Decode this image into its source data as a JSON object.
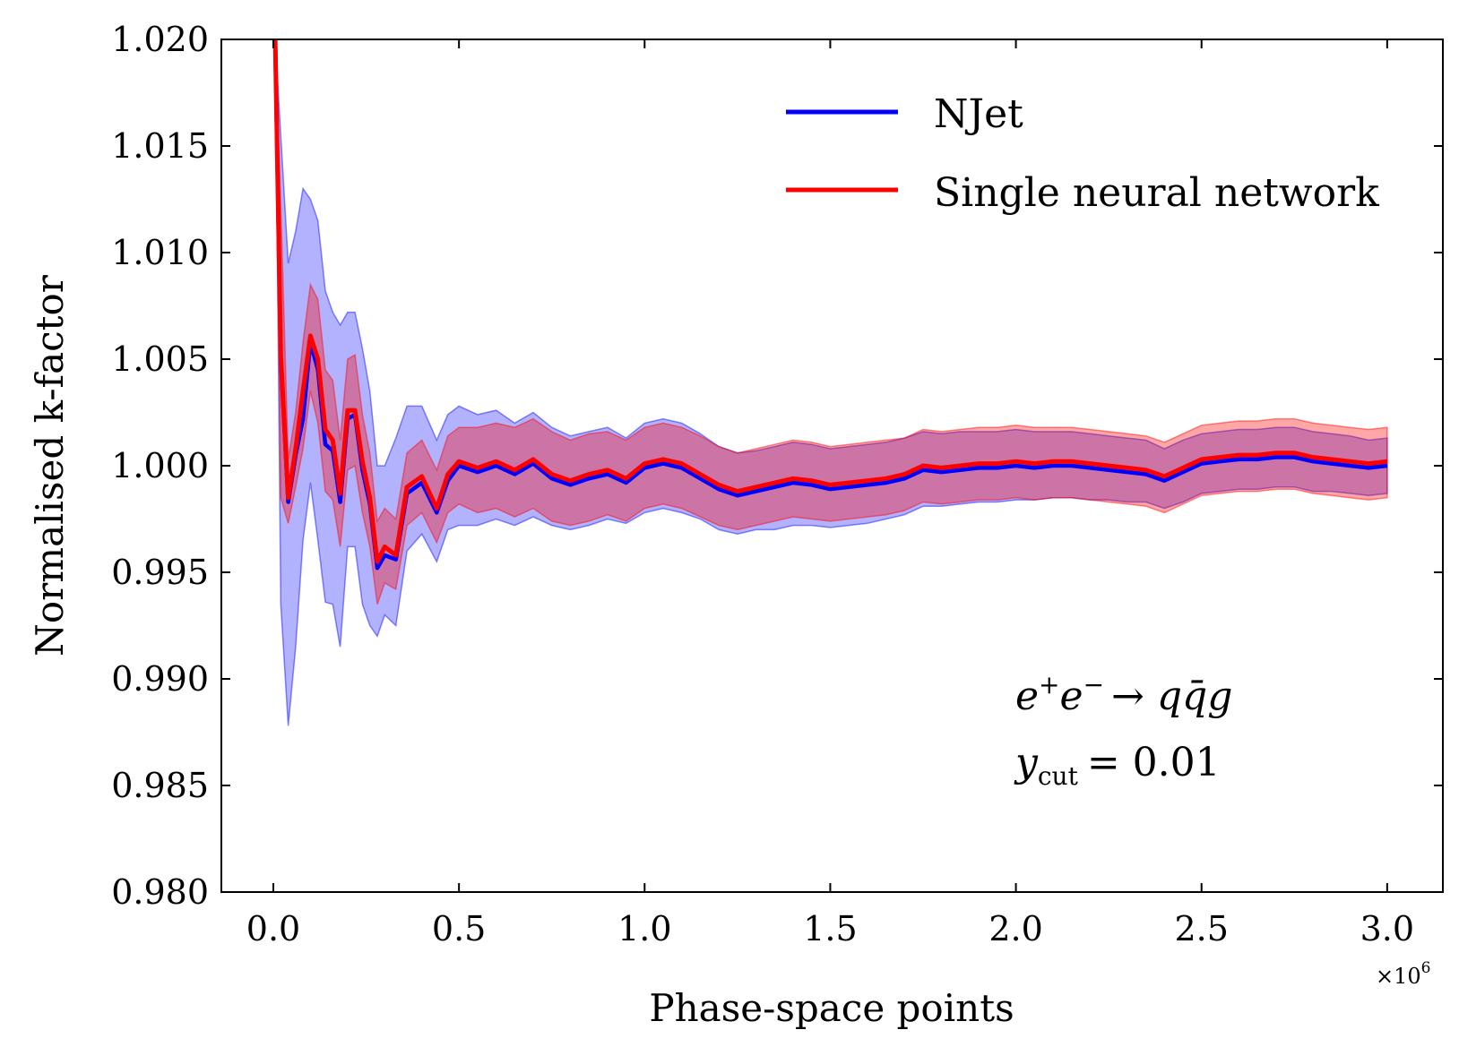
{
  "chart_data": {
    "type": "line",
    "xlabel": "Phase-space points",
    "ylabel": "Normalised k-factor",
    "x_scale_label": "×10",
    "x_scale_exponent": "6",
    "xlim": [
      -0.14,
      3.15
    ],
    "ylim": [
      0.98,
      1.02
    ],
    "xticks": [
      0.0,
      0.5,
      1.0,
      1.5,
      2.0,
      2.5,
      3.0
    ],
    "xtick_labels": [
      "0.0",
      "0.5",
      "1.0",
      "1.5",
      "2.0",
      "2.5",
      "3.0"
    ],
    "yticks": [
      0.98,
      0.985,
      0.99,
      0.995,
      1.0,
      1.005,
      1.01,
      1.015,
      1.02
    ],
    "ytick_labels": [
      "0.980",
      "0.985",
      "0.990",
      "0.995",
      "1.000",
      "1.005",
      "1.010",
      "1.015",
      "1.020"
    ],
    "legend_position": "top-right",
    "annotation": {
      "process_lhs": "e",
      "process_rhs": "→ qq̄g",
      "ycut_symbol": "y",
      "ycut_sub": "cut",
      "ycut_value": "= 0.01"
    },
    "x": [
      0.005,
      0.02,
      0.04,
      0.06,
      0.08,
      0.1,
      0.12,
      0.14,
      0.16,
      0.18,
      0.2,
      0.22,
      0.24,
      0.26,
      0.28,
      0.3,
      0.33,
      0.36,
      0.4,
      0.44,
      0.47,
      0.5,
      0.55,
      0.6,
      0.65,
      0.7,
      0.75,
      0.8,
      0.85,
      0.9,
      0.95,
      1.0,
      1.05,
      1.1,
      1.15,
      1.2,
      1.25,
      1.3,
      1.35,
      1.4,
      1.45,
      1.5,
      1.55,
      1.6,
      1.65,
      1.7,
      1.75,
      1.8,
      1.85,
      1.9,
      1.95,
      2.0,
      2.05,
      2.1,
      2.15,
      2.2,
      2.25,
      2.3,
      2.35,
      2.4,
      2.45,
      2.5,
      2.55,
      2.6,
      2.65,
      2.7,
      2.75,
      2.8,
      2.85,
      2.9,
      2.95,
      3.0
    ],
    "series": [
      {
        "name": "NJet",
        "color": "#0000ff",
        "values": [
          1.02,
          1.005,
          0.9983,
          1.0005,
          1.0022,
          1.0058,
          1.0045,
          1.001,
          1.0007,
          0.9983,
          1.0022,
          1.0024,
          0.9998,
          0.9982,
          0.9952,
          0.9958,
          0.9956,
          0.9987,
          0.9992,
          0.9978,
          0.9993,
          1.0,
          0.9997,
          1.0,
          0.9996,
          1.0001,
          0.9994,
          0.9991,
          0.9994,
          0.9996,
          0.9992,
          0.9999,
          1.0001,
          0.9999,
          0.9994,
          0.9989,
          0.9986,
          0.9988,
          0.999,
          0.9992,
          0.9991,
          0.9989,
          0.999,
          0.9991,
          0.9992,
          0.9994,
          0.9998,
          0.9997,
          0.9998,
          0.9999,
          0.9999,
          1.0,
          0.9999,
          1.0,
          1.0,
          0.9999,
          0.9998,
          0.9997,
          0.9996,
          0.9993,
          0.9997,
          1.0001,
          1.0002,
          1.0003,
          1.0003,
          1.0004,
          1.0004,
          1.0002,
          1.0001,
          1.0,
          0.9999,
          1.0
        ]
      },
      {
        "name": "Single neural network",
        "color": "#ff0000",
        "values": [
          1.02,
          1.0052,
          0.9985,
          1.0008,
          1.0035,
          1.0061,
          1.005,
          1.0017,
          1.0012,
          0.9987,
          1.0026,
          1.0026,
          1.0002,
          0.9985,
          0.9955,
          0.9962,
          0.9958,
          0.999,
          0.9995,
          0.998,
          0.9996,
          1.0002,
          0.9999,
          1.0002,
          0.9998,
          1.0003,
          0.9996,
          0.9993,
          0.9996,
          0.9998,
          0.9994,
          1.0001,
          1.0003,
          1.0001,
          0.9996,
          0.9991,
          0.9988,
          0.999,
          0.9992,
          0.9994,
          0.9993,
          0.9991,
          0.9992,
          0.9993,
          0.9994,
          0.9996,
          1.0,
          0.9999,
          1.0,
          1.0001,
          1.0001,
          1.0002,
          1.0001,
          1.0002,
          1.0002,
          1.0001,
          1.0,
          0.9999,
          0.9998,
          0.9995,
          0.9999,
          1.0003,
          1.0004,
          1.0005,
          1.0005,
          1.0006,
          1.0006,
          1.0004,
          1.0003,
          1.0002,
          1.0001,
          1.0002
        ]
      }
    ],
    "bands": [
      {
        "name": "NJet uncertainty",
        "color": "#0000ff",
        "opacity": 0.3,
        "lower": [
          1.02,
          0.9935,
          0.9878,
          0.9915,
          0.9965,
          0.9992,
          0.9965,
          0.9936,
          0.9935,
          0.9915,
          0.9962,
          0.9962,
          0.9935,
          0.9925,
          0.992,
          0.993,
          0.9925,
          0.996,
          0.9968,
          0.9955,
          0.997,
          0.9972,
          0.9972,
          0.9975,
          0.9972,
          0.9976,
          0.9972,
          0.997,
          0.9972,
          0.9975,
          0.9973,
          0.9978,
          0.998,
          0.9978,
          0.9975,
          0.997,
          0.9968,
          0.997,
          0.997,
          0.9972,
          0.9972,
          0.9971,
          0.9972,
          0.9973,
          0.9975,
          0.9977,
          0.9981,
          0.9981,
          0.9982,
          0.9983,
          0.9983,
          0.9984,
          0.9984,
          0.9985,
          0.9985,
          0.9984,
          0.9984,
          0.9983,
          0.9983,
          0.998,
          0.9983,
          0.9987,
          0.9988,
          0.9989,
          0.9989,
          0.999,
          0.999,
          0.9988,
          0.9988,
          0.9987,
          0.9986,
          0.9987
        ],
        "upper": [
          1.02,
          1.0155,
          1.0095,
          1.011,
          1.013,
          1.0125,
          1.0115,
          1.0082,
          1.0072,
          1.0066,
          1.0072,
          1.0072,
          1.0055,
          1.0035,
          1.0,
          1.0,
          1.0013,
          1.0028,
          1.0028,
          1.0012,
          1.0024,
          1.0028,
          1.0024,
          1.0026,
          1.002,
          1.0025,
          1.0018,
          1.0014,
          1.0016,
          1.0018,
          1.0013,
          1.002,
          1.0022,
          1.002,
          1.0015,
          1.0009,
          1.0006,
          1.0007,
          1.0009,
          1.0011,
          1.001,
          1.0008,
          1.0009,
          1.001,
          1.0011,
          1.0013,
          1.0016,
          1.0015,
          1.0016,
          1.0016,
          1.0016,
          1.0017,
          1.0016,
          1.0016,
          1.0016,
          1.0015,
          1.0014,
          1.0013,
          1.0012,
          1.0008,
          1.0012,
          1.0015,
          1.0016,
          1.0017,
          1.0017,
          1.0018,
          1.0018,
          1.0016,
          1.0015,
          1.0014,
          1.0012,
          1.0013
        ]
      },
      {
        "name": "Single neural network uncertainty",
        "color": "#ff0000",
        "opacity": 0.35,
        "lower": [
          1.02,
          0.9985,
          0.9973,
          0.999,
          1.0008,
          1.0035,
          1.002,
          0.9988,
          0.9984,
          0.9962,
          0.9998,
          1.0,
          0.9978,
          0.9962,
          0.9935,
          0.9945,
          0.9942,
          0.9972,
          0.9978,
          0.9964,
          0.9978,
          0.9982,
          0.9978,
          0.998,
          0.9976,
          0.998,
          0.9974,
          0.9972,
          0.9974,
          0.9977,
          0.9974,
          0.998,
          0.9982,
          0.998,
          0.9976,
          0.9972,
          0.997,
          0.9972,
          0.9974,
          0.9976,
          0.9975,
          0.9974,
          0.9975,
          0.9976,
          0.9977,
          0.9979,
          0.9983,
          0.9982,
          0.9983,
          0.9984,
          0.9984,
          0.9985,
          0.9984,
          0.9985,
          0.9985,
          0.9984,
          0.9983,
          0.9982,
          0.9981,
          0.9978,
          0.9982,
          0.9986,
          0.9987,
          0.9988,
          0.9988,
          0.9989,
          0.9989,
          0.9987,
          0.9986,
          0.9985,
          0.9984,
          0.9985
        ],
        "upper": [
          1.02,
          1.0122,
          1.0003,
          1.0025,
          1.0058,
          1.0085,
          1.0078,
          1.0045,
          1.004,
          1.0012,
          1.005,
          1.0052,
          1.0024,
          1.0006,
          0.9974,
          0.998,
          0.9975,
          1.0006,
          1.0012,
          0.9998,
          1.0014,
          1.0018,
          1.0018,
          1.002,
          1.0018,
          1.0022,
          1.0016,
          1.0012,
          1.0015,
          1.0016,
          1.0012,
          1.0018,
          1.002,
          1.0018,
          1.0014,
          1.0009,
          1.0006,
          1.0008,
          1.001,
          1.0012,
          1.0011,
          1.0009,
          1.001,
          1.0011,
          1.0012,
          1.0013,
          1.0017,
          1.0016,
          1.0017,
          1.0018,
          1.0018,
          1.0019,
          1.0018,
          1.0018,
          1.0018,
          1.0017,
          1.0016,
          1.0015,
          1.0014,
          1.0011,
          1.0015,
          1.0019,
          1.002,
          1.0021,
          1.0021,
          1.0022,
          1.0022,
          1.002,
          1.0019,
          1.0018,
          1.0017,
          1.0018
        ]
      }
    ]
  }
}
